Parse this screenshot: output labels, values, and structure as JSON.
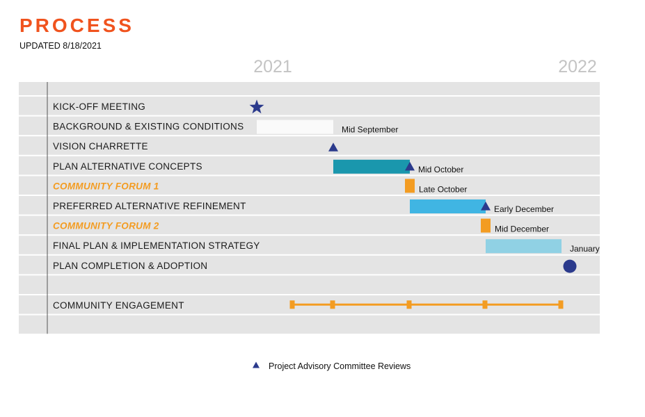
{
  "header": {
    "title": "PROCESS",
    "updated": "UPDATED 8/18/2021"
  },
  "legend": {
    "label": "Project Advisory Committee Reviews",
    "icon": "triangle-icon"
  },
  "colors": {
    "accent_orange": "#f0531e",
    "forum_orange": "#f39c22",
    "navy": "#2b3a8c",
    "teal": "#1a97ad",
    "blue": "#40b5e3",
    "light_blue": "#90d1e4",
    "background_gray": "#e4e4e4",
    "row_gap_white": "#ffffff",
    "year_gray": "#c4c4c4"
  },
  "chart_data": {
    "type": "gantt",
    "title": "PROCESS",
    "subtitle": "UPDATED 8/18/2021",
    "year_labels": [
      {
        "label": "2021",
        "date": "2021-08"
      },
      {
        "label": "2022",
        "date": "2022-01"
      }
    ],
    "tasks": [
      {
        "label": "KICK-OFF MEETING",
        "highlight": false,
        "mark": "star",
        "date": "2021-08",
        "color": "#2b3a8c"
      },
      {
        "label": "BACKGROUND & EXISTING CONDITIONS",
        "highlight": false,
        "mark": "bar",
        "start": "2021-08",
        "end": "2021-09",
        "color": "#fafafa",
        "annotation": "Mid September"
      },
      {
        "label": "VISION CHARRETTE",
        "highlight": false,
        "mark": "triangle",
        "date": "2021-09",
        "color": "#2b3a8c"
      },
      {
        "label": "PLAN ALTERNATIVE CONCEPTS",
        "highlight": false,
        "mark": "bar",
        "start": "2021-09",
        "end": "2021-10",
        "color": "#1a97ad",
        "milestone": "triangle",
        "annotation": "Mid October"
      },
      {
        "label": "COMMUNITY FORUM 1",
        "highlight": true,
        "mark": "block",
        "date": "2021-10",
        "color": "#f39c22",
        "annotation": "Late October"
      },
      {
        "label": "PREFERRED ALTERNATIVE REFINEMENT",
        "highlight": false,
        "mark": "bar",
        "start": "2021-10",
        "end": "2021-12",
        "color": "#40b5e3",
        "milestone": "triangle",
        "annotation": "Early December"
      },
      {
        "label": "COMMUNITY FORUM 2",
        "highlight": true,
        "mark": "block",
        "date": "2021-12",
        "color": "#f39c22",
        "annotation": "Mid December"
      },
      {
        "label": "FINAL PLAN & IMPLEMENTATION STRATEGY",
        "highlight": false,
        "mark": "bar",
        "start": "2021-12",
        "end": "2022-01",
        "color": "#90d1e4",
        "annotation": "January"
      },
      {
        "label": "PLAN COMPLETION & ADOPTION",
        "highlight": false,
        "mark": "circle",
        "date": "2022-01",
        "color": "#2b3a8c"
      },
      {
        "label": "",
        "highlight": false,
        "mark": "none"
      },
      {
        "label": "COMMUNITY ENGAGEMENT",
        "highlight": false,
        "mark": "span",
        "start": "2021-08",
        "end": "2022-01",
        "ticks": [
          "2021-08",
          "2021-09",
          "2021-10",
          "2021-12",
          "2022-01"
        ],
        "color": "#f39c22"
      },
      {
        "label": "",
        "highlight": false,
        "mark": "none"
      }
    ],
    "grid": true,
    "legend_position": "bottom-center"
  }
}
